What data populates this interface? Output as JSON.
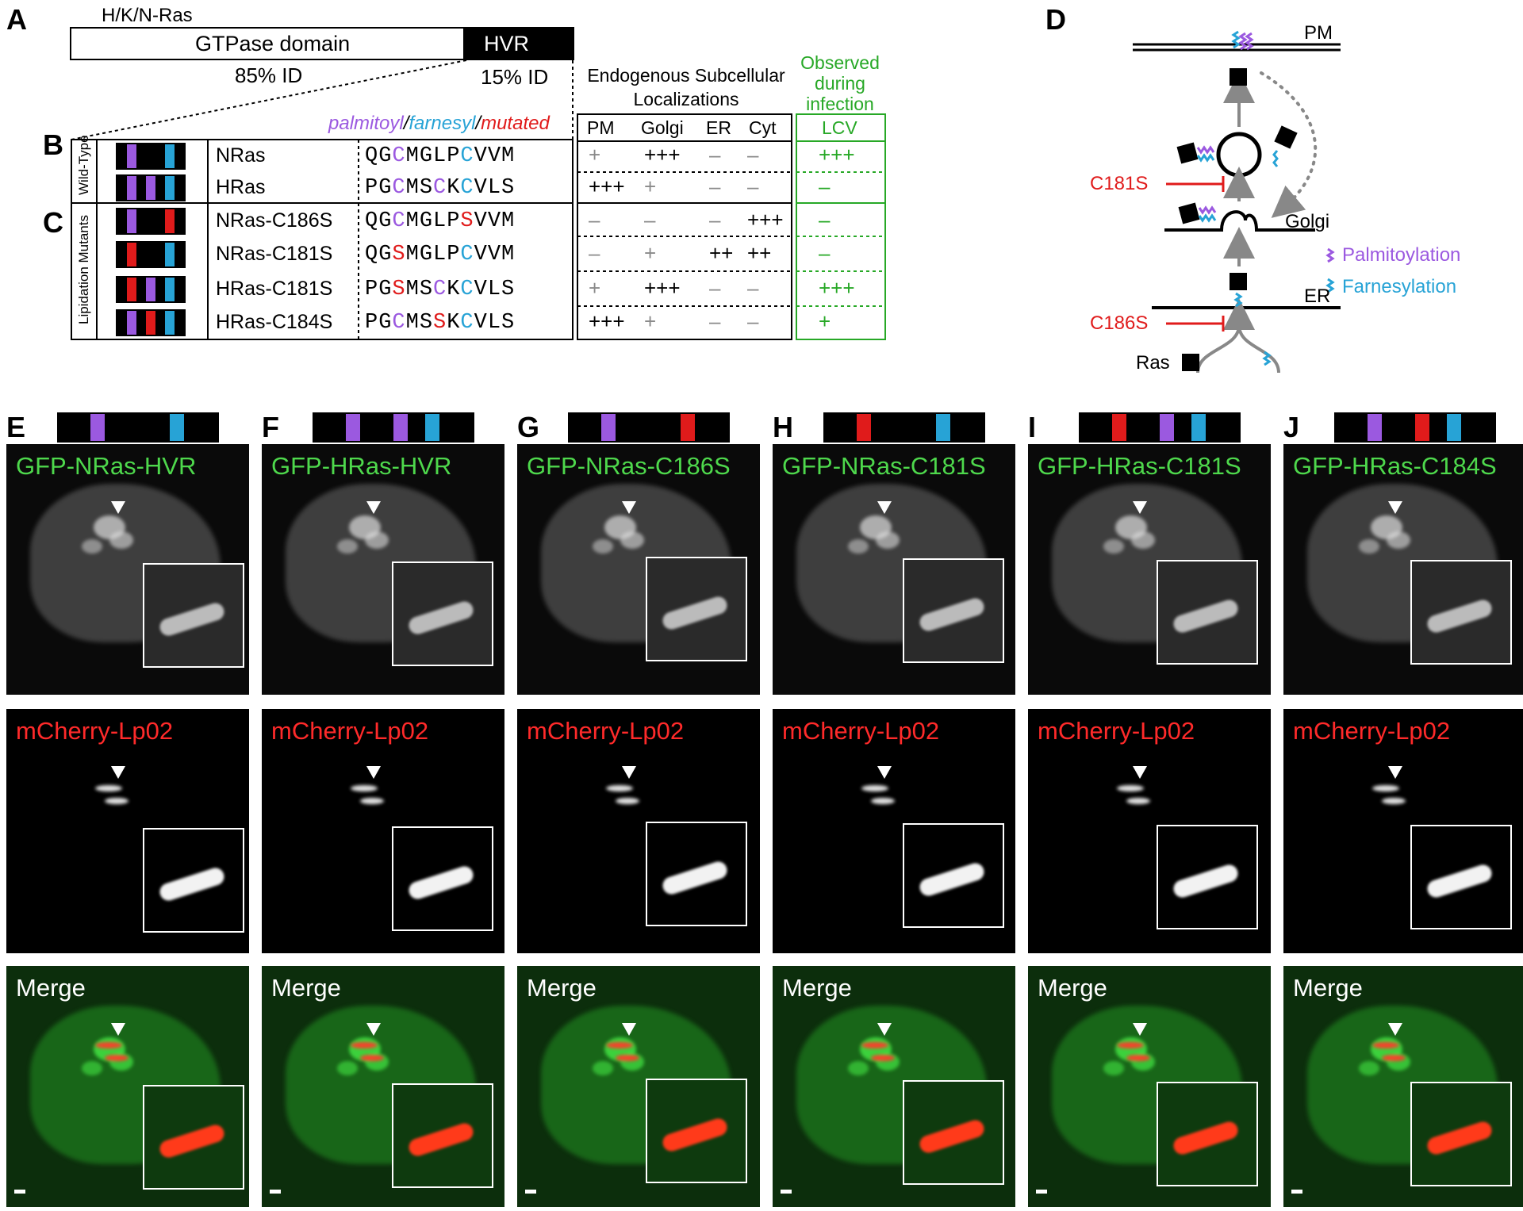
{
  "panels": {
    "A": "A",
    "B": "B",
    "C": "C",
    "D": "D",
    "E": "E",
    "F": "F",
    "G": "G",
    "H": "H",
    "I": "I",
    "J": "J"
  },
  "schematic": {
    "family": "H/K/N-Ras",
    "gtpase": "GTPase domain",
    "hvr": "HVR",
    "gtpase_id": "85% ID",
    "hvr_id": "15% ID"
  },
  "table": {
    "legend_palmitoyl": "palmitoyl",
    "legend_farnesyl": "farnesyl",
    "legend_mutated": "mutated",
    "slash": "/",
    "group_wt": "Wild-Type",
    "group_mut": "Lipidation Mutants",
    "endogenous_header": "Endogenous Subcellular Localizations",
    "observed_header": "Observed during infection",
    "columns": [
      "PM",
      "Golgi",
      "ER",
      "Cyt"
    ],
    "lcv": "LCV",
    "rows": [
      {
        "name": "NRas",
        "seq": [
          "Q",
          "G",
          "C",
          "M",
          "G",
          "L",
          "P",
          "C",
          "V",
          "V",
          "M"
        ],
        "seqc": [
          "k",
          "k",
          "p",
          "k",
          "k",
          "k",
          "k",
          "b",
          "k",
          "k",
          "k"
        ],
        "vals": [
          "+",
          "+++",
          "–",
          "–"
        ],
        "valc": [
          "g",
          "k",
          "g",
          "g"
        ],
        "lcv": "+++",
        "strip": [
          "k",
          "p",
          "k",
          "k",
          "k",
          "b",
          "k"
        ]
      },
      {
        "name": "HRas",
        "seq": [
          "P",
          "G",
          "C",
          "M",
          "S",
          "C",
          "K",
          "C",
          "V",
          "L",
          "S"
        ],
        "seqc": [
          "k",
          "k",
          "p",
          "k",
          "k",
          "p",
          "k",
          "b",
          "k",
          "k",
          "k"
        ],
        "vals": [
          "+++",
          "+",
          "–",
          "–"
        ],
        "valc": [
          "k",
          "g",
          "g",
          "g"
        ],
        "lcv": "–",
        "strip": [
          "k",
          "p",
          "k",
          "p",
          "k",
          "b",
          "k"
        ]
      },
      {
        "name": "NRas-C186S",
        "seq": [
          "Q",
          "G",
          "C",
          "M",
          "G",
          "L",
          "P",
          "S",
          "V",
          "V",
          "M"
        ],
        "seqc": [
          "k",
          "k",
          "p",
          "k",
          "k",
          "k",
          "k",
          "r",
          "k",
          "k",
          "k"
        ],
        "vals": [
          "–",
          "–",
          "–",
          "+++"
        ],
        "valc": [
          "g",
          "g",
          "g",
          "k"
        ],
        "lcv": "–",
        "strip": [
          "k",
          "p",
          "k",
          "k",
          "k",
          "r",
          "k"
        ]
      },
      {
        "name": "NRas-C181S",
        "seq": [
          "Q",
          "G",
          "S",
          "M",
          "G",
          "L",
          "P",
          "C",
          "V",
          "V",
          "M"
        ],
        "seqc": [
          "k",
          "k",
          "r",
          "k",
          "k",
          "k",
          "k",
          "b",
          "k",
          "k",
          "k"
        ],
        "vals": [
          "–",
          "+",
          "++",
          "++"
        ],
        "valc": [
          "g",
          "g",
          "k",
          "k"
        ],
        "lcv": "–",
        "strip": [
          "k",
          "r",
          "k",
          "k",
          "k",
          "b",
          "k"
        ]
      },
      {
        "name": "HRas-C181S",
        "seq": [
          "P",
          "G",
          "S",
          "M",
          "S",
          "C",
          "K",
          "C",
          "V",
          "L",
          "S"
        ],
        "seqc": [
          "k",
          "k",
          "r",
          "k",
          "k",
          "p",
          "k",
          "b",
          "k",
          "k",
          "k"
        ],
        "vals": [
          "+",
          "+++",
          "–",
          "–"
        ],
        "valc": [
          "g",
          "k",
          "g",
          "g"
        ],
        "lcv": "+++",
        "strip": [
          "k",
          "r",
          "k",
          "p",
          "k",
          "b",
          "k"
        ]
      },
      {
        "name": "HRas-C184S",
        "seq": [
          "P",
          "G",
          "C",
          "M",
          "S",
          "S",
          "K",
          "C",
          "V",
          "L",
          "S"
        ],
        "seqc": [
          "k",
          "k",
          "p",
          "k",
          "k",
          "r",
          "k",
          "b",
          "k",
          "k",
          "k"
        ],
        "vals": [
          "+++",
          "+",
          "–",
          "–"
        ],
        "valc": [
          "k",
          "g",
          "g",
          "g"
        ],
        "lcv": "+",
        "strip": [
          "k",
          "p",
          "k",
          "r",
          "k",
          "b",
          "k"
        ]
      }
    ]
  },
  "model": {
    "pm": "PM",
    "golgi": "Golgi",
    "er": "ER",
    "c181s": "C181S",
    "c186s": "C186S",
    "ras": "Ras",
    "palm": "Palmitoylation",
    "farn": "Farnesylation"
  },
  "micro": {
    "merge_label": "Merge",
    "lp_label": "mCherry-Lp02",
    "columns": [
      {
        "id": "E",
        "label": "GFP-NRas-HVR",
        "strip": [
          "k",
          "k",
          "p",
          "k",
          "k",
          "k",
          "k",
          "b",
          "k",
          "k"
        ]
      },
      {
        "id": "F",
        "label": "GFP-HRas-HVR",
        "strip": [
          "k",
          "k",
          "p",
          "k",
          "k",
          "p",
          "k",
          "b",
          "k",
          "k"
        ]
      },
      {
        "id": "G",
        "label": "GFP-NRas-C186S",
        "strip": [
          "k",
          "k",
          "p",
          "k",
          "k",
          "k",
          "k",
          "r",
          "k",
          "k"
        ]
      },
      {
        "id": "H",
        "label": "GFP-NRas-C181S",
        "strip": [
          "k",
          "k",
          "r",
          "k",
          "k",
          "k",
          "k",
          "b",
          "k",
          "k"
        ]
      },
      {
        "id": "I",
        "label": "GFP-HRas-C181S",
        "strip": [
          "k",
          "k",
          "r",
          "k",
          "k",
          "p",
          "k",
          "b",
          "k",
          "k"
        ]
      },
      {
        "id": "J",
        "label": "GFP-HRas-C184S",
        "strip": [
          "k",
          "k",
          "p",
          "k",
          "k",
          "r",
          "k",
          "b",
          "k",
          "k"
        ]
      }
    ]
  },
  "colors": {
    "purple": "#9b59e0",
    "blue": "#27a3d6",
    "red": "#e01b1b",
    "green": "#27a826"
  }
}
